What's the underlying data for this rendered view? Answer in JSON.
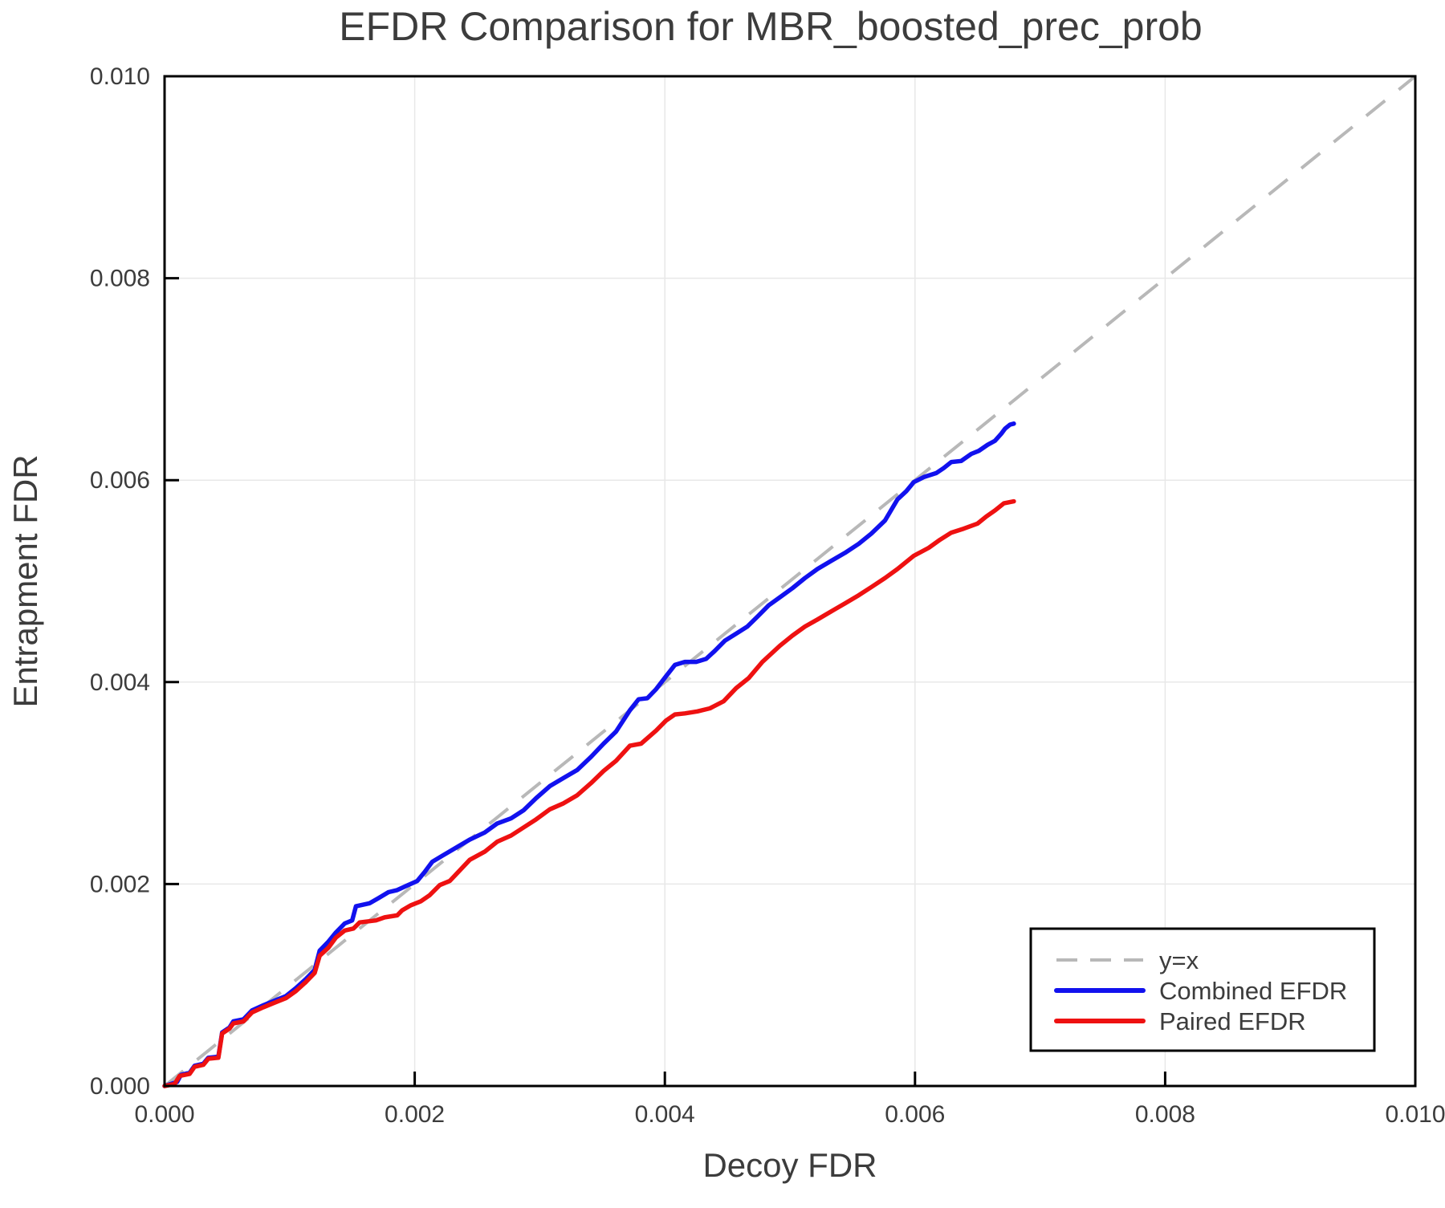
{
  "colors": {
    "background": "#ffffff",
    "grid": "#e8e8e8",
    "frame": "#000000",
    "text": "#3c3c3c",
    "tick": "#000000",
    "identity": "#b8b8b8",
    "combined": "#1111ee",
    "paired": "#ee1111"
  },
  "chart_data": {
    "type": "line",
    "title": "EFDR Comparison for MBR_boosted_prec_prob",
    "xlabel": "Decoy FDR",
    "ylabel": "Entrapment FDR",
    "xlim": [
      0.0,
      0.01
    ],
    "ylim": [
      0.0,
      0.01
    ],
    "grid": true,
    "legend_position": "bottom-right",
    "xticks": [
      {
        "value": 0.0,
        "label": "0.000"
      },
      {
        "value": 0.002,
        "label": "0.002"
      },
      {
        "value": 0.004,
        "label": "0.004"
      },
      {
        "value": 0.006,
        "label": "0.006"
      },
      {
        "value": 0.008,
        "label": "0.008"
      },
      {
        "value": 0.01,
        "label": "0.010"
      }
    ],
    "yticks": [
      {
        "value": 0.0,
        "label": "0.000"
      },
      {
        "value": 0.002,
        "label": "0.002"
      },
      {
        "value": 0.004,
        "label": "0.004"
      },
      {
        "value": 0.006,
        "label": "0.006"
      },
      {
        "value": 0.008,
        "label": "0.008"
      },
      {
        "value": 0.01,
        "label": "0.010"
      }
    ],
    "series": [
      {
        "name": "y=x",
        "style": "dashed",
        "color": "#b8b8b8",
        "x": [
          0.0,
          0.01
        ],
        "y": [
          0.0,
          0.01
        ]
      },
      {
        "name": "Combined EFDR",
        "style": "solid",
        "color": "#1111ee",
        "x": [
          0,
          0.0001,
          0.00013,
          0.0002,
          0.00024,
          0.00031,
          0.00035,
          0.00043,
          0.00046,
          0.00052,
          0.00055,
          0.00063,
          0.0007,
          0.00079,
          0.00087,
          0.00097,
          0.00105,
          0.00113,
          0.0012,
          0.00124,
          0.00131,
          0.00137,
          0.00144,
          0.0015,
          0.00153,
          0.00164,
          0.00171,
          0.00179,
          0.00186,
          0.00193,
          0.00202,
          0.00208,
          0.00214,
          0.00222,
          0.00233,
          0.00244,
          0.00256,
          0.00266,
          0.00277,
          0.00287,
          0.00297,
          0.00308,
          0.00319,
          0.0033,
          0.00341,
          0.00351,
          0.00361,
          0.00372,
          0.00379,
          0.00386,
          0.00393,
          0.00401,
          0.00408,
          0.00416,
          0.00425,
          0.00433,
          0.0044,
          0.00448,
          0.00457,
          0.00466,
          0.00475,
          0.00483,
          0.00492,
          0.00502,
          0.00512,
          0.00522,
          0.00533,
          0.00544,
          0.00555,
          0.00565,
          0.00576,
          0.00586,
          0.00593,
          0.00599,
          0.00607,
          0.00617,
          0.00623,
          0.00629,
          0.00637,
          0.00645,
          0.00651,
          0.00658,
          0.00664,
          0.00669,
          0.00672,
          0.00676,
          0.00679
        ],
        "y": [
          0,
          4e-05,
          0.00011,
          0.00013,
          0.0002,
          0.00022,
          0.00028,
          0.00029,
          0.00053,
          0.00058,
          0.00064,
          0.00066,
          0.00075,
          0.0008,
          0.00084,
          0.00089,
          0.00097,
          0.00106,
          0.00115,
          0.00134,
          0.00143,
          0.00152,
          0.00161,
          0.00164,
          0.00178,
          0.00181,
          0.00186,
          0.00192,
          0.00194,
          0.00198,
          0.00203,
          0.00212,
          0.00222,
          0.00228,
          0.00236,
          0.00244,
          0.00251,
          0.0026,
          0.00265,
          0.00273,
          0.00285,
          0.00297,
          0.00305,
          0.00313,
          0.00326,
          0.00339,
          0.00351,
          0.00372,
          0.00383,
          0.00384,
          0.00393,
          0.00406,
          0.00417,
          0.0042,
          0.0042,
          0.00423,
          0.00431,
          0.00441,
          0.00448,
          0.00455,
          0.00466,
          0.00476,
          0.00484,
          0.00493,
          0.00503,
          0.00512,
          0.0052,
          0.00528,
          0.00537,
          0.00547,
          0.0056,
          0.00581,
          0.00589,
          0.00598,
          0.00603,
          0.00607,
          0.00612,
          0.00618,
          0.00619,
          0.00626,
          0.00629,
          0.00635,
          0.00639,
          0.00646,
          0.00651,
          0.00655,
          0.00656
        ]
      },
      {
        "name": "Paired EFDR",
        "style": "solid",
        "color": "#ee1111",
        "x": [
          0,
          8e-05,
          0.00012,
          0.0002,
          0.00024,
          0.00031,
          0.00035,
          0.00043,
          0.00046,
          0.00052,
          0.00055,
          0.00063,
          0.0007,
          0.00079,
          0.00087,
          0.00097,
          0.00105,
          0.00113,
          0.0012,
          0.00124,
          0.00131,
          0.00137,
          0.00144,
          0.00151,
          0.00156,
          0.00169,
          0.00176,
          0.00186,
          0.0019,
          0.00197,
          0.00205,
          0.00212,
          0.0022,
          0.00228,
          0.00244,
          0.00256,
          0.00266,
          0.00277,
          0.00287,
          0.00297,
          0.00308,
          0.00319,
          0.0033,
          0.00341,
          0.00351,
          0.00361,
          0.00372,
          0.00381,
          0.00393,
          0.00401,
          0.00408,
          0.00416,
          0.00426,
          0.00436,
          0.00447,
          0.00457,
          0.00467,
          0.00478,
          0.00492,
          0.00502,
          0.00512,
          0.00522,
          0.00533,
          0.00544,
          0.00555,
          0.00565,
          0.00576,
          0.00586,
          0.00599,
          0.00611,
          0.0062,
          0.00629,
          0.00639,
          0.0065,
          0.00657,
          0.00664,
          0.00671,
          0.00679
        ],
        "y": [
          0,
          2e-05,
          0.0001,
          0.00012,
          0.00019,
          0.00021,
          0.00027,
          0.00028,
          0.00052,
          0.00057,
          0.00062,
          0.00064,
          0.00073,
          0.00078,
          0.00082,
          0.00087,
          0.00094,
          0.00103,
          0.00112,
          0.00129,
          0.00137,
          0.00147,
          0.00154,
          0.00156,
          0.00162,
          0.00164,
          0.00167,
          0.00169,
          0.00174,
          0.00179,
          0.00183,
          0.00189,
          0.00199,
          0.00203,
          0.00224,
          0.00232,
          0.00242,
          0.00248,
          0.00256,
          0.00264,
          0.00274,
          0.0028,
          0.00288,
          0.003,
          0.00312,
          0.00322,
          0.00337,
          0.00339,
          0.00352,
          0.00362,
          0.00368,
          0.00369,
          0.00371,
          0.00374,
          0.00381,
          0.00394,
          0.00404,
          0.0042,
          0.00436,
          0.00446,
          0.00455,
          0.00462,
          0.0047,
          0.00478,
          0.00486,
          0.00494,
          0.00503,
          0.00512,
          0.00525,
          0.00533,
          0.00541,
          0.00548,
          0.00552,
          0.00557,
          0.00564,
          0.0057,
          0.00577,
          0.00579
        ]
      }
    ],
    "legend": {
      "entries": [
        {
          "label": "y=x"
        },
        {
          "label": "Combined EFDR"
        },
        {
          "label": "Paired EFDR"
        }
      ]
    }
  }
}
